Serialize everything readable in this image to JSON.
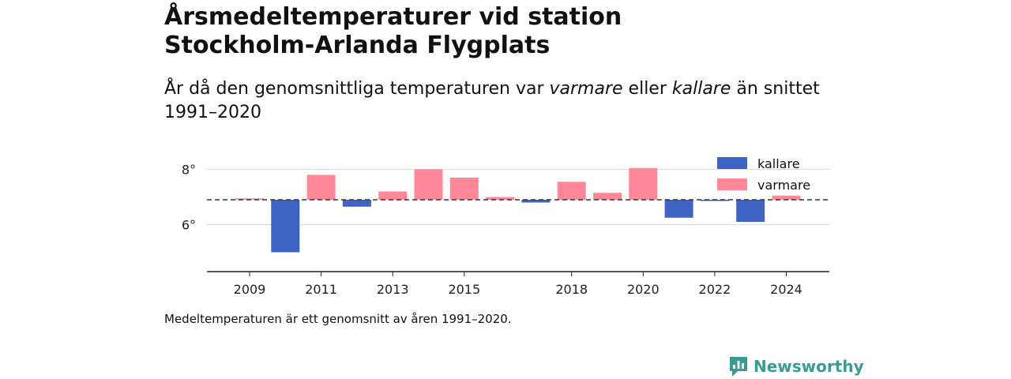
{
  "title_line1": "Årsmedeltemperaturer vid station",
  "title_line2": "Stockholm-Arlanda Flygplats",
  "subtitle": {
    "part1": "År då den genomsnittliga temperaturen var ",
    "warm_word": "varmare",
    "part2": " eller ",
    "cold_word": "kallare",
    "part3": " än snittet 1991–2020"
  },
  "footnote": "Medeltemperaturen är ett genomsnitt av åren 1991–2020.",
  "brand": {
    "name": "Newsworthy",
    "color": "#3a9b93",
    "icon": "newsworthy-logo-icon"
  },
  "colors": {
    "colder": "#3f63c2",
    "warmer": "#ff8797",
    "reference_line": "#333333",
    "grid": "#dddddd",
    "axis": "#222222"
  },
  "chart_data": {
    "type": "bar",
    "baseline": 6.9,
    "ylim": [
      4.3,
      8.7
    ],
    "yticks": [
      6,
      8
    ],
    "ytick_labels": [
      "6°",
      "8°"
    ],
    "grid": true,
    "legend_position": "top-right",
    "legend": [
      {
        "key": "colder",
        "label": "kallare"
      },
      {
        "key": "warmer",
        "label": "varmare"
      }
    ],
    "categories": [
      "2009",
      "2010",
      "2011",
      "2012",
      "2013",
      "2014",
      "2015",
      "2016",
      "2017",
      "2018",
      "2019",
      "2020",
      "2021",
      "2022",
      "2023",
      "2024"
    ],
    "values": [
      6.95,
      5.0,
      7.8,
      6.65,
      7.2,
      8.0,
      7.7,
      7.0,
      6.8,
      7.55,
      7.15,
      8.05,
      6.25,
      6.88,
      6.1,
      7.05
    ],
    "xtick_labels": [
      "2009",
      "2011",
      "2013",
      "2015",
      "2018",
      "2020",
      "2022",
      "2024"
    ]
  }
}
